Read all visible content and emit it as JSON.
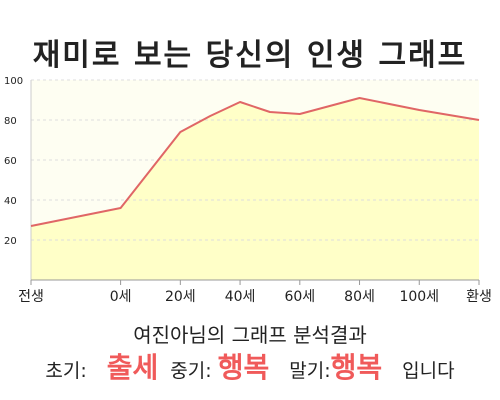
{
  "page": {
    "title": "재미로 보는 당신의 인생 그래프",
    "result_heading": "여진아님의 그래프 분석결과",
    "result": {
      "early_label": "초기:",
      "early_value": "출세",
      "mid_label": "중기:",
      "mid_value": "행복",
      "late_label": "말기:",
      "late_value": "행복",
      "suffix": "입니다"
    }
  },
  "colors": {
    "line": "#e06666",
    "fill": "#ffffc8",
    "plot_bg": "#fefef2",
    "grid": "#dddddd",
    "highlight": "#f05a5a"
  },
  "chart_data": {
    "type": "area",
    "title": "재미로 보는 당신의 인생 그래프",
    "xlabel": "",
    "ylabel": "",
    "x_ticks": [
      {
        "label": "전생",
        "x": -30
      },
      {
        "label": "0세",
        "x": 0
      },
      {
        "label": "20세",
        "x": 20
      },
      {
        "label": "40세",
        "x": 40
      },
      {
        "label": "60세",
        "x": 60
      },
      {
        "label": "80세",
        "x": 80
      },
      {
        "label": "100세",
        "x": 100
      },
      {
        "label": "환생",
        "x": 120
      }
    ],
    "xlim": [
      -30,
      120
    ],
    "ylim": [
      0,
      100
    ],
    "y_ticks": [
      20,
      40,
      60,
      80,
      100
    ],
    "grid": "horizontal dashed",
    "legend": "none",
    "series": [
      {
        "points": [
          {
            "x": -30,
            "y": 27
          },
          {
            "x": 0,
            "y": 36
          },
          {
            "x": 20,
            "y": 74
          },
          {
            "x": 30,
            "y": 82
          },
          {
            "x": 40,
            "y": 89
          },
          {
            "x": 50,
            "y": 84
          },
          {
            "x": 60,
            "y": 83
          },
          {
            "x": 70,
            "y": 87
          },
          {
            "x": 80,
            "y": 91
          },
          {
            "x": 100,
            "y": 85
          },
          {
            "x": 120,
            "y": 80
          }
        ]
      }
    ]
  }
}
